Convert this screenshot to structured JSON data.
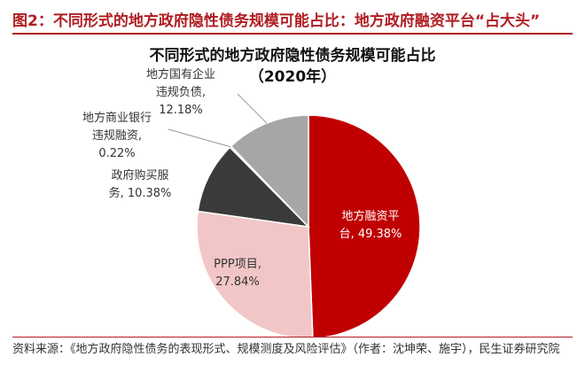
{
  "figure": {
    "label": "图2：不同形式的地方政府隐性债务规模可能占比：地方政府融资平台“占大头”",
    "source": "资料来源：《地方政府隐性债务的表现形式、规模测度及风险评估》（作者：沈坤荣、施宇），民生证券研究院"
  },
  "chart_data": {
    "type": "pie",
    "title": "不同形式的地方政府隐性债务规模可能占比",
    "subtitle": "（2020年）",
    "slices": [
      {
        "label_line1": "地方融资平",
        "label_line2": "台, 49.38%",
        "value": 49.38,
        "color": "#c00000"
      },
      {
        "label_line1": "PPP项目,",
        "label_line2": "27.84%",
        "value": 27.84,
        "color": "#f2c6c6"
      },
      {
        "label_line1": "政府购买服",
        "label_line2": "务, 10.38%",
        "value": 10.38,
        "color": "#3a3a3a"
      },
      {
        "label_line1": "地方商业银行",
        "label_line2": "违规融资,",
        "label_line3": "0.22%",
        "value": 0.22,
        "color": "#e07b22"
      },
      {
        "label_line1": "地方国有企业",
        "label_line2": "违规负债,",
        "label_line3": "12.18%",
        "value": 12.18,
        "color": "#a6a6a6"
      }
    ],
    "legend": "none"
  }
}
